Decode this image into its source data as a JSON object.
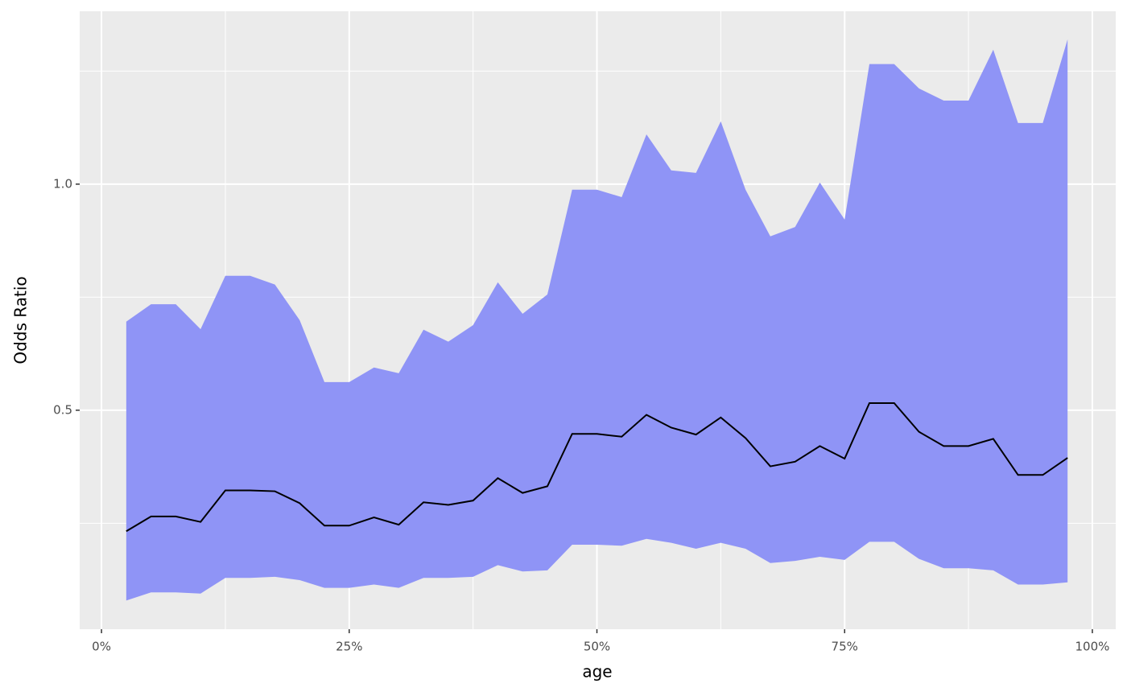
{
  "chart_data": {
    "type": "line",
    "xlabel": "age",
    "ylabel": "Odds Ratio",
    "x": [
      0.025,
      0.05,
      0.075,
      0.1,
      0.125,
      0.15,
      0.175,
      0.2,
      0.225,
      0.25,
      0.275,
      0.3,
      0.325,
      0.35,
      0.375,
      0.4,
      0.425,
      0.45,
      0.475,
      0.5,
      0.525,
      0.55,
      0.575,
      0.6,
      0.625,
      0.65,
      0.675,
      0.7,
      0.725,
      0.75,
      0.775,
      0.8,
      0.825,
      0.85,
      0.875,
      0.9,
      0.925,
      0.95,
      0.975
    ],
    "values": [
      0.345,
      0.361,
      0.361,
      0.355,
      0.391,
      0.391,
      0.39,
      0.376,
      0.351,
      0.351,
      0.36,
      0.352,
      0.377,
      0.374,
      0.379,
      0.406,
      0.388,
      0.396,
      0.465,
      0.465,
      0.461,
      0.493,
      0.474,
      0.464,
      0.489,
      0.459,
      0.421,
      0.427,
      0.448,
      0.431,
      0.511,
      0.511,
      0.468,
      0.448,
      0.448,
      0.458,
      0.41,
      0.41,
      0.432
    ],
    "lower": [
      0.279,
      0.286,
      0.286,
      0.285,
      0.299,
      0.299,
      0.3,
      0.297,
      0.29,
      0.29,
      0.293,
      0.29,
      0.299,
      0.299,
      0.3,
      0.311,
      0.305,
      0.306,
      0.331,
      0.331,
      0.33,
      0.337,
      0.333,
      0.327,
      0.333,
      0.327,
      0.313,
      0.315,
      0.319,
      0.316,
      0.334,
      0.334,
      0.317,
      0.308,
      0.308,
      0.306,
      0.293,
      0.293,
      0.295
    ],
    "upper": [
      0.656,
      0.692,
      0.692,
      0.641,
      0.755,
      0.755,
      0.735,
      0.659,
      0.545,
      0.545,
      0.57,
      0.56,
      0.64,
      0.617,
      0.649,
      0.74,
      0.672,
      0.713,
      0.983,
      0.983,
      0.961,
      1.165,
      1.043,
      1.035,
      1.212,
      0.983,
      0.852,
      0.877,
      1.005,
      0.897,
      1.445,
      1.445,
      1.341,
      1.292,
      1.292,
      1.51,
      1.206,
      1.206,
      1.559
    ],
    "color": "#000000",
    "fill": "#8f94f6",
    "xlim": [
      -0.022,
      1.0236
    ],
    "xticks": [
      {
        "value": 0,
        "label": "0%"
      },
      {
        "value": 0.25,
        "label": "25%"
      },
      {
        "value": 0.5,
        "label": "50%"
      },
      {
        "value": 0.75,
        "label": "75%"
      },
      {
        "value": 1,
        "label": "100%"
      }
    ],
    "ylim": [
      0.2555,
      1.699
    ],
    "ylog": true,
    "yticks": [
      0.5,
      {
        "value": 1,
        "label": "1.0"
      }
    ],
    "grid": true
  }
}
